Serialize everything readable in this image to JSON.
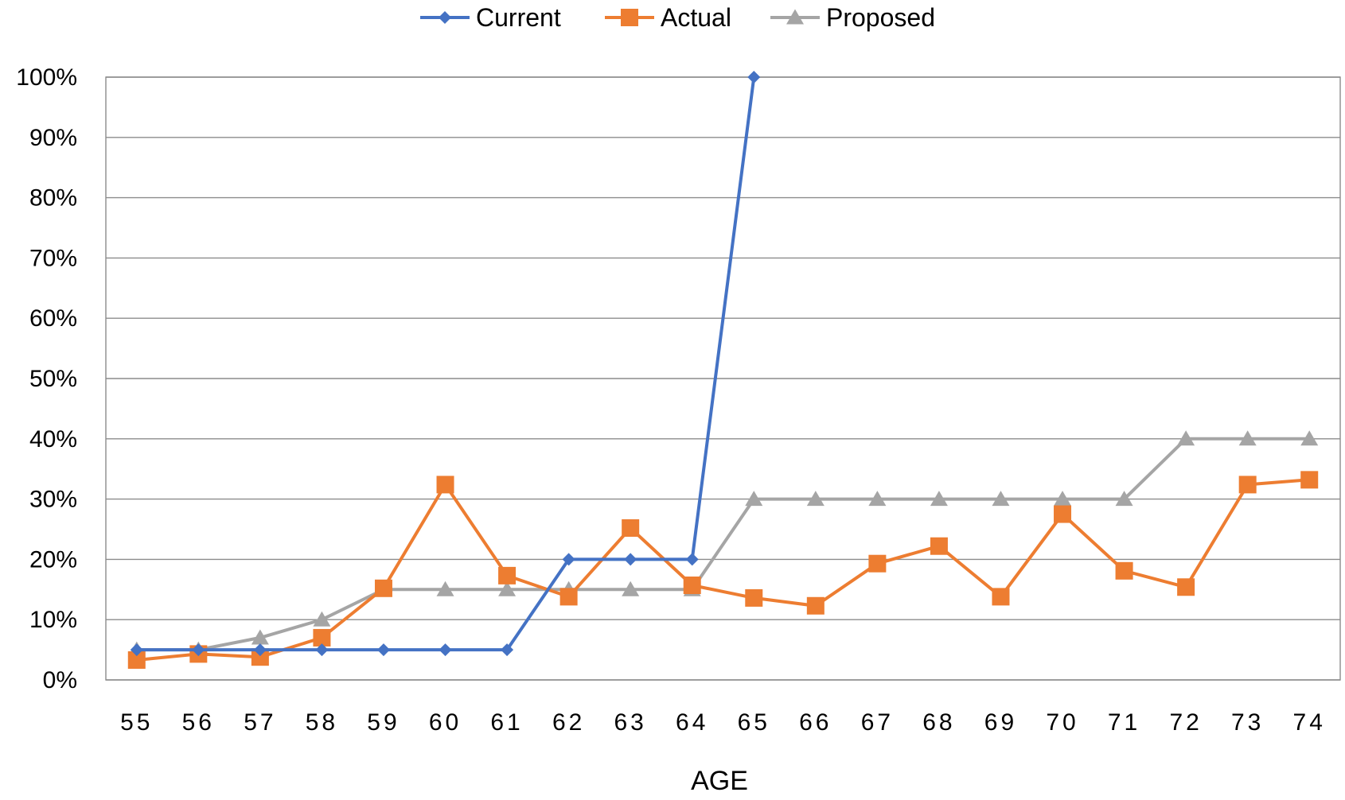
{
  "chart_data": {
    "type": "line",
    "title": "",
    "xlabel": "AGE",
    "ylabel": "",
    "categories": [
      "55",
      "56",
      "57",
      "58",
      "59",
      "60",
      "61",
      "62",
      "63",
      "64",
      "65",
      "66",
      "67",
      "68",
      "69",
      "70",
      "71",
      "72",
      "73",
      "74"
    ],
    "ylim": [
      0,
      100
    ],
    "y_ticks": [
      "0%",
      "10%",
      "20%",
      "30%",
      "40%",
      "50%",
      "60%",
      "70%",
      "80%",
      "90%",
      "100%"
    ],
    "grid": true,
    "legend_position": "top",
    "series": [
      {
        "name": "Current",
        "color": "#4472C4",
        "marker": "diamond",
        "values": [
          5,
          5,
          5,
          5,
          5,
          5,
          5,
          20,
          20,
          20,
          100,
          null,
          null,
          null,
          null,
          null,
          null,
          null,
          null,
          null
        ]
      },
      {
        "name": "Actual",
        "color": "#ED7D31",
        "marker": "square",
        "values": [
          3.3,
          4.3,
          3.8,
          7,
          15.2,
          32.4,
          17.3,
          13.8,
          25.2,
          15.7,
          13.6,
          12.3,
          19.3,
          22.2,
          13.8,
          27.5,
          18.1,
          15.4,
          32.4,
          33.2
        ]
      },
      {
        "name": "Proposed",
        "color": "#A5A5A5",
        "marker": "triangle",
        "values": [
          5,
          5,
          7,
          10,
          15,
          15,
          15,
          15,
          15,
          15,
          30,
          30,
          30,
          30,
          30,
          30,
          30,
          40,
          40,
          40
        ]
      }
    ]
  }
}
